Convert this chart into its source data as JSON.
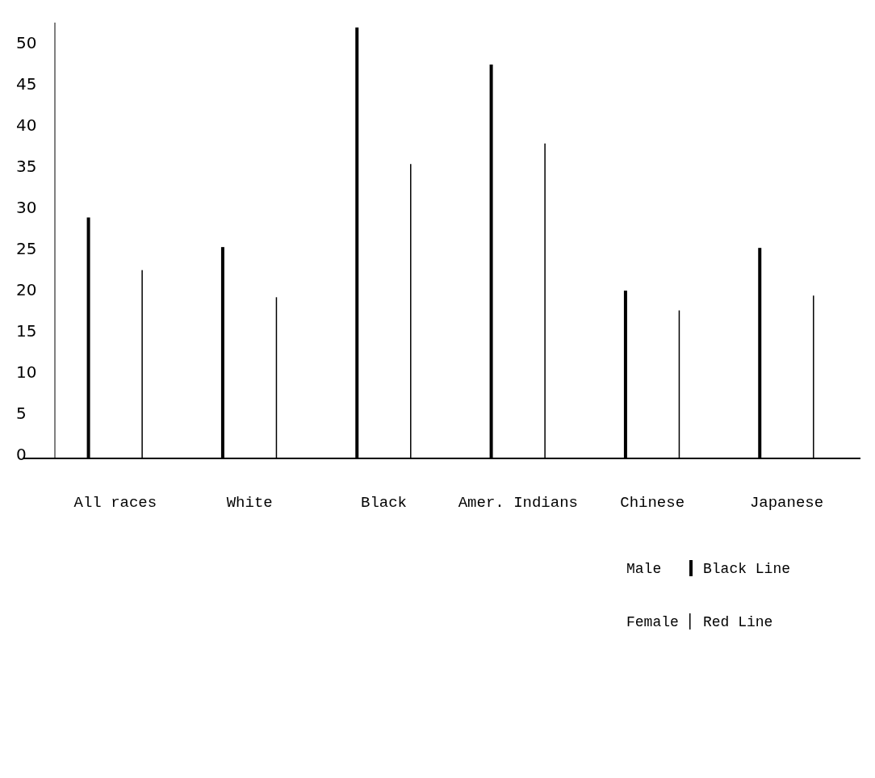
{
  "chart_data": {
    "type": "bar",
    "categories": [
      "All races",
      "White",
      "Black",
      "Amer. Indians",
      "Chinese",
      "Japanese"
    ],
    "series": [
      {
        "name": "Male",
        "color": "#000000",
        "values": [
          29.3,
          25.7,
          52.4,
          47.9,
          20.4,
          25.6
        ]
      },
      {
        "name": "Female",
        "color": "#000000",
        "values": [
          22.9,
          19.6,
          35.8,
          38.3,
          18.0,
          19.8
        ]
      }
    ],
    "ylim": [
      0,
      53
    ],
    "yticks": [
      0,
      5,
      10,
      15,
      20,
      25,
      30,
      35,
      40,
      45,
      50
    ],
    "grid": false,
    "legend": "bottom right",
    "annotations": [
      "Black Line",
      "Red Line"
    ]
  }
}
